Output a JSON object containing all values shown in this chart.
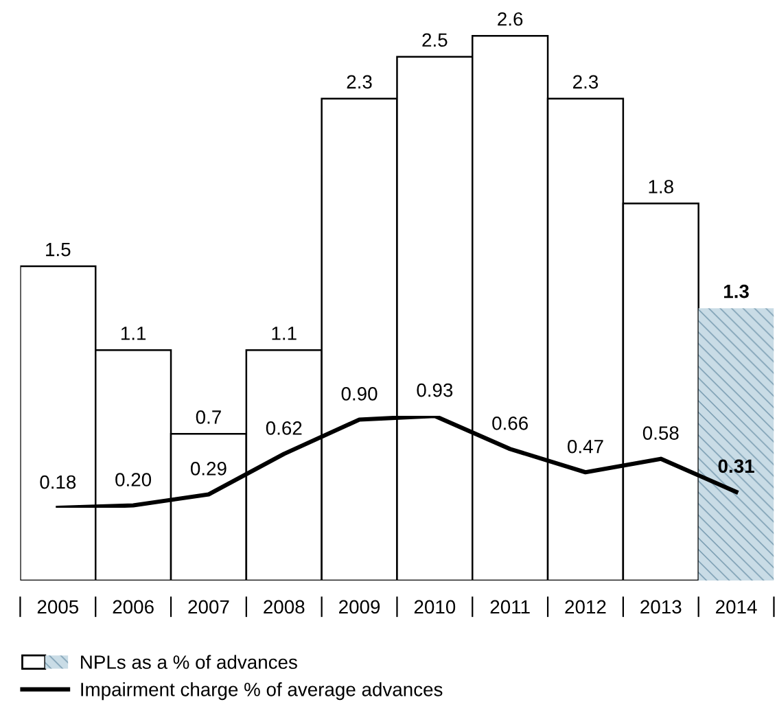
{
  "chart_data": {
    "type": "bar",
    "categories": [
      "2005",
      "2006",
      "2007",
      "2008",
      "2009",
      "2010",
      "2011",
      "2012",
      "2013",
      "2014"
    ],
    "series": [
      {
        "name": "NPLs as a % of advances",
        "color": "#ffffff",
        "colors": [
          "#ffffff",
          "#ffffff",
          "#ffffff",
          "#ffffff",
          "#ffffff",
          "#ffffff",
          "#ffffff",
          "#ffffff",
          "#ffffff",
          "#c9dce6"
        ],
        "values": [
          1.5,
          1.1,
          0.7,
          1.1,
          2.3,
          2.5,
          2.6,
          2.3,
          1.8,
          1.3
        ]
      },
      {
        "name": "Impairment charge % of average advances",
        "type": "line",
        "axis": "y2",
        "color": "#000000",
        "values": [
          0.18,
          0.2,
          0.29,
          0.62,
          0.9,
          0.93,
          0.66,
          0.47,
          0.58,
          0.31
        ],
        "value_labels": [
          "0.18",
          "0.20",
          "0.29",
          "0.62",
          "0.90",
          "0.93",
          "0.66",
          "0.47",
          "0.58",
          "0.31"
        ]
      }
    ],
    "tick_labels": "x",
    "data_labels": true,
    "legend": "bottom",
    "grid": false,
    "marker": "none",
    "line_style": "solid"
  }
}
